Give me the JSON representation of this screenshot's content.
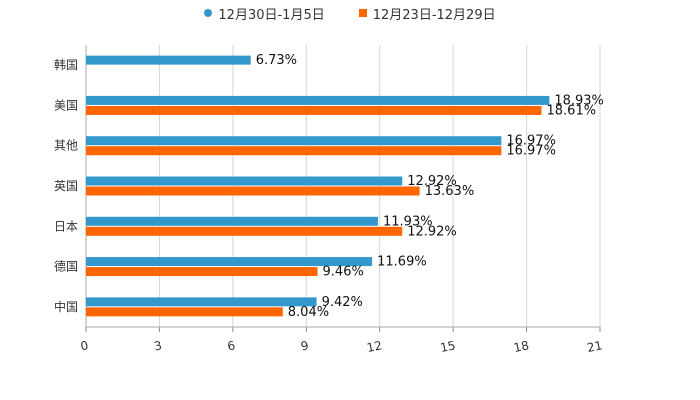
{
  "chart_data": {
    "type": "bar",
    "orientation": "horizontal",
    "categories": [
      "韩国",
      "美国",
      "其他",
      "英国",
      "日本",
      "德国",
      "中国"
    ],
    "series": [
      {
        "name": "12月30日-1月5日",
        "color": "#3399cc",
        "values": [
          6.73,
          18.93,
          16.97,
          12.92,
          11.93,
          11.69,
          9.42
        ]
      },
      {
        "name": "12月23日-12月29日",
        "color": "#ff6600",
        "values": [
          null,
          18.61,
          16.97,
          13.63,
          12.92,
          9.46,
          8.04
        ]
      }
    ],
    "value_suffix": "%",
    "xlim": [
      0,
      21
    ],
    "xticks": [
      "0",
      "3",
      "6",
      "9",
      "12",
      "15",
      "18",
      "21"
    ],
    "grid": true,
    "legend_position": "top-center",
    "title": "",
    "xlabel": "",
    "ylabel": ""
  }
}
